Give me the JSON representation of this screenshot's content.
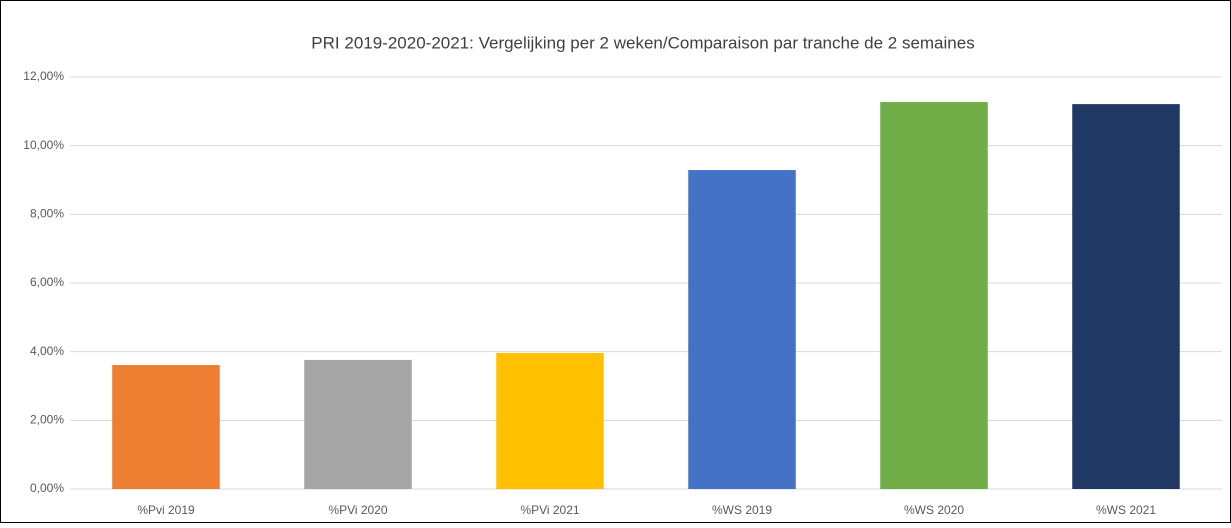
{
  "chart_data": {
    "type": "bar",
    "title": "PRI 2019-2020-2021: Vergelijking per 2 weken/Comparaison par tranche de 2 semaines",
    "categories": [
      "%Pvi 2019",
      "%PVi 2020",
      "%PVi 2021",
      "%WS 2019",
      "%WS 2020",
      "%WS 2021"
    ],
    "values": [
      3.61,
      3.76,
      3.96,
      9.29,
      11.27,
      11.21
    ],
    "colors": [
      "#ed7d31",
      "#a5a5a5",
      "#ffc000",
      "#4472c4",
      "#70ad47",
      "#203864"
    ],
    "ylim": [
      0,
      12
    ],
    "yticks": [
      {
        "value": 0,
        "label": "0,00%"
      },
      {
        "value": 2,
        "label": "2,00%"
      },
      {
        "value": 4,
        "label": "4,00%"
      },
      {
        "value": 6,
        "label": "6,00%"
      },
      {
        "value": 8,
        "label": "8,00%"
      },
      {
        "value": 10,
        "label": "10,00%"
      },
      {
        "value": 12,
        "label": "12,00%"
      }
    ],
    "grid": true
  }
}
